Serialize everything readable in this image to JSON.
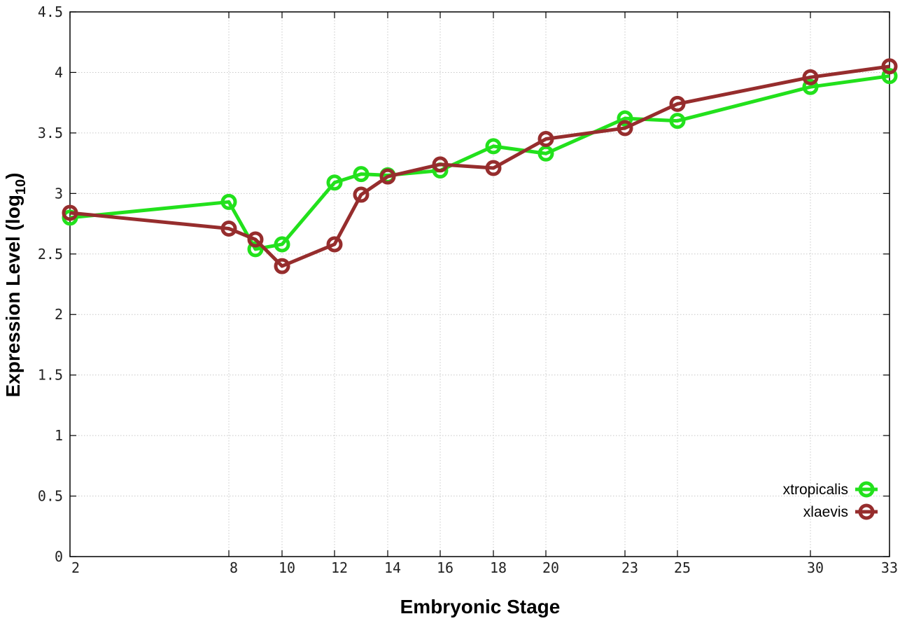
{
  "chart_data": {
    "type": "line",
    "title": "",
    "xlabel": "Embryonic Stage",
    "ylabel_main": "Expression Level (log",
    "ylabel_sub": "10",
    "ylabel_close": ")",
    "ylim": [
      0,
      4.5
    ],
    "xlim": [
      2,
      33
    ],
    "x_scale": "custom-categorical-spacing",
    "x_ticks": [
      {
        "value": 2,
        "label": "2"
      },
      {
        "value": 8,
        "label": "8"
      },
      {
        "value": 10,
        "label": "10"
      },
      {
        "value": 12,
        "label": "12"
      },
      {
        "value": 14,
        "label": "14"
      },
      {
        "value": 16,
        "label": "16"
      },
      {
        "value": 18,
        "label": "18"
      },
      {
        "value": 20,
        "label": "20"
      },
      {
        "value": 23,
        "label": "23"
      },
      {
        "value": 25,
        "label": "25"
      },
      {
        "value": 30,
        "label": "30"
      },
      {
        "value": 33,
        "label": "33"
      }
    ],
    "y_ticks": [
      {
        "value": 0,
        "label": "0"
      },
      {
        "value": 0.5,
        "label": "0.5"
      },
      {
        "value": 1,
        "label": "1"
      },
      {
        "value": 1.5,
        "label": "1.5"
      },
      {
        "value": 2,
        "label": "2"
      },
      {
        "value": 2.5,
        "label": "2.5"
      },
      {
        "value": 3,
        "label": "3"
      },
      {
        "value": 3.5,
        "label": "3.5"
      },
      {
        "value": 4,
        "label": "4"
      },
      {
        "value": 4.5,
        "label": "4.5"
      }
    ],
    "grid": true,
    "legend_position": "bottom-right",
    "series": [
      {
        "name": "xtropicalis",
        "color": "#22e11c",
        "marker": "open-circle",
        "x": [
          2,
          8,
          9,
          10,
          12,
          13,
          14,
          16,
          18,
          20,
          23,
          25,
          30,
          33
        ],
        "values": [
          2.8,
          2.93,
          2.54,
          2.58,
          3.09,
          3.16,
          3.15,
          3.19,
          3.39,
          3.33,
          3.62,
          3.6,
          3.88,
          3.97
        ]
      },
      {
        "name": "xlaevis",
        "color": "#962d2d",
        "marker": "open-circle",
        "x": [
          2,
          8,
          9,
          10,
          12,
          13,
          14,
          16,
          18,
          20,
          23,
          25,
          30,
          33
        ],
        "values": [
          2.84,
          2.71,
          2.62,
          2.4,
          2.58,
          2.99,
          3.14,
          3.24,
          3.21,
          3.45,
          3.54,
          3.74,
          3.96,
          4.05
        ]
      }
    ]
  }
}
